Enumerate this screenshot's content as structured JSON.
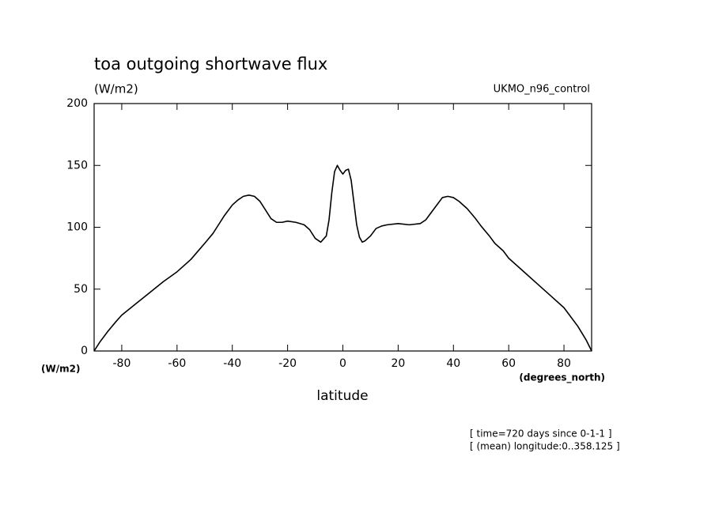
{
  "chart_data": {
    "type": "line",
    "title": "toa outgoing shortwave flux",
    "units_label": "(W/m2)",
    "dataset_label": "UKMO_n96_control",
    "y_axis_label": "(W/m2)",
    "x_units_label": "(degrees_north)",
    "x_axis_label": "latitude",
    "notes": [
      "[ time=720 days since 0-1-1 ]",
      "[ (mean) longitude:0..358.125 ]"
    ],
    "xlim": [
      -90,
      90
    ],
    "xticks": [
      -80,
      -60,
      -40,
      -20,
      0,
      20,
      40,
      60,
      80
    ],
    "ylim": [
      0,
      200
    ],
    "yticks": [
      0,
      50,
      100,
      150,
      200
    ],
    "series": [
      {
        "color": "#000000",
        "x": [
          -90,
          -88,
          -85,
          -82,
          -80,
          -75,
          -70,
          -65,
          -60,
          -55,
          -50,
          -47,
          -45,
          -43,
          -40,
          -38,
          -36,
          -34,
          -32,
          -30,
          -28,
          -26,
          -24,
          -22,
          -20,
          -17,
          -14,
          -12,
          -10,
          -8,
          -6,
          -5,
          -4,
          -3,
          -2,
          -1,
          0,
          1,
          2,
          3,
          4,
          5,
          6,
          7,
          8,
          10,
          12,
          14,
          16,
          20,
          24,
          28,
          30,
          33,
          36,
          38,
          40,
          42,
          45,
          48,
          50,
          53,
          55,
          58,
          60,
          65,
          70,
          75,
          80,
          85,
          88,
          90
        ],
        "values": [
          0,
          7,
          16,
          24,
          29,
          38,
          47,
          56,
          64,
          74,
          87,
          95,
          102,
          109,
          118,
          122,
          125,
          126,
          125,
          121,
          114,
          107,
          104,
          104,
          105,
          104,
          102,
          98,
          91,
          88,
          93,
          106,
          128,
          145,
          150,
          146,
          143,
          146,
          147,
          138,
          120,
          102,
          92,
          88,
          89,
          93,
          99,
          101,
          102,
          103,
          102,
          103,
          106,
          115,
          124,
          125,
          124,
          121,
          115,
          107,
          101,
          93,
          87,
          81,
          75,
          65,
          55,
          45,
          35,
          20,
          9,
          0
        ]
      }
    ]
  }
}
